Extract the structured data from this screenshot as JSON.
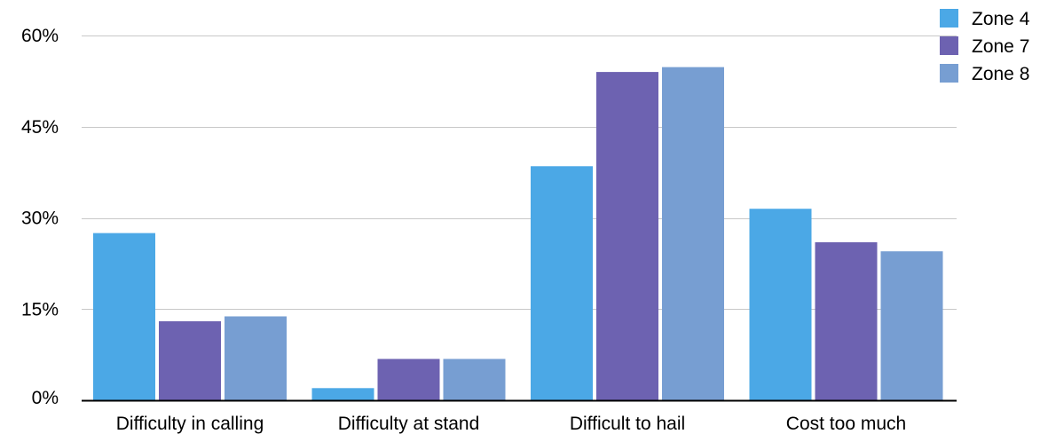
{
  "chart_data": {
    "type": "bar",
    "title": "",
    "xlabel": "",
    "ylabel": "",
    "categories": [
      "Difficulty in calling",
      "Difficulty at stand",
      "Difficult to hail",
      "Cost too much"
    ],
    "series": [
      {
        "name": "Zone 4",
        "color": "#4BA8E6",
        "values": [
          27.5,
          2.0,
          38.5,
          31.5
        ]
      },
      {
        "name": "Zone 7",
        "color": "#6D62B1",
        "values": [
          13.0,
          6.8,
          54.0,
          26.0
        ]
      },
      {
        "name": "Zone 8",
        "color": "#779ED2",
        "values": [
          13.8,
          6.8,
          54.8,
          24.5
        ]
      }
    ],
    "ylim": [
      0,
      60
    ],
    "yticks": [
      0,
      15,
      30,
      45,
      60
    ],
    "ytick_labels": [
      "0%",
      "15%",
      "30%",
      "45%",
      "60%"
    ],
    "grid": true,
    "legend_position": "top-right"
  }
}
